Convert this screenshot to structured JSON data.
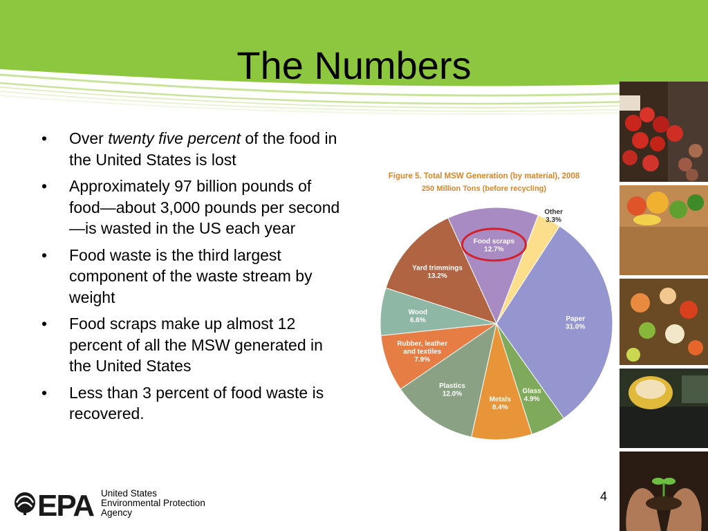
{
  "slide": {
    "title": "The Numbers",
    "page_number": "4"
  },
  "bullets": [
    {
      "pre": "Over ",
      "em": "twenty five percent",
      "post": " of the food in the United States is lost"
    },
    {
      "text": "Approximately 97 billion pounds of food—about 3,000 pounds per second—is wasted in the US each year"
    },
    {
      "text": "Food waste is the third largest component of the waste stream by weight"
    },
    {
      "text": "Food scraps make up almost 12 percent of all the MSW generated in the United States"
    },
    {
      "text": "Less than 3 percent of food waste is recovered."
    }
  ],
  "chart_data": {
    "type": "pie",
    "title": "Figure 5. Total MSW Generation (by material), 2008",
    "subtitle": "250 Million Tons (before recycling)",
    "title_color": "#d9852a",
    "highlight_color": "#d32028",
    "highlighted_category": "Food scraps",
    "slices": [
      {
        "name": "Food scraps",
        "value": 12.7,
        "label_value": "12.7%",
        "color": "#a88bc2"
      },
      {
        "name": "Other",
        "value": 3.3,
        "label_value": "3.3%",
        "color": "#fdde8d"
      },
      {
        "name": "Paper",
        "value": 31.0,
        "label_value": "31.0%",
        "color": "#9595cf"
      },
      {
        "name": "Glass",
        "value": 4.9,
        "label_value": "4.9%",
        "color": "#7fa95b"
      },
      {
        "name": "Metals",
        "value": 8.4,
        "label_value": "8.4%",
        "color": "#e8953a"
      },
      {
        "name": "Plastics",
        "value": 12.0,
        "label_value": "12.0%",
        "color": "#8aa184"
      },
      {
        "name": "Rubber, leather and textiles",
        "value": 7.9,
        "label_value": "7.9%",
        "color": "#e57d45"
      },
      {
        "name": "Wood",
        "value": 6.6,
        "label_value": "6.6%",
        "color": "#8fb7a5"
      },
      {
        "name": "Yard trimmings",
        "value": 13.2,
        "label_value": "13.2%",
        "color": "#b06441"
      }
    ]
  },
  "footer": {
    "logo_text": "EPA",
    "agency_lines": [
      "United States",
      "Environmental Protection",
      "Agency"
    ]
  },
  "colors": {
    "header_green": "#8dc63f",
    "header_light": "#c9e39a"
  },
  "photos": [
    {
      "icon": "tomatoes-photo"
    },
    {
      "icon": "vegetable-bag-photo"
    },
    {
      "icon": "food-scraps-photo"
    },
    {
      "icon": "compost-bin-photo"
    },
    {
      "icon": "seedling-hands-photo"
    }
  ]
}
